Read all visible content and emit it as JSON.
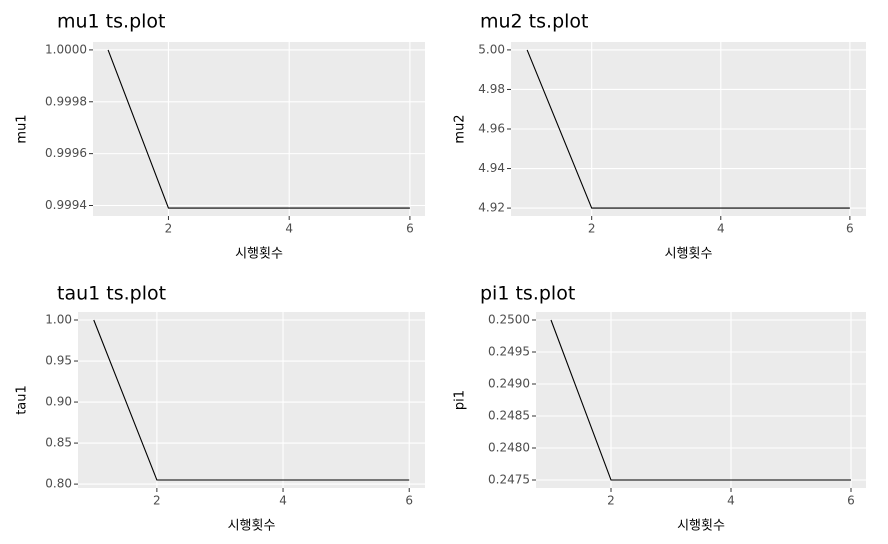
{
  "chart_data": [
    {
      "type": "line",
      "title": "mu1 ts.plot",
      "x_label": "시행횟수",
      "y_label": "mu1",
      "color": "#000000",
      "grid": true,
      "x": [
        1,
        2,
        3,
        4,
        5,
        6
      ],
      "values": [
        1.0,
        0.99939,
        0.99939,
        0.99939,
        0.99939,
        0.99939
      ],
      "xlim": [
        0.75,
        6.25
      ],
      "xticks": [
        2,
        4,
        6
      ],
      "ylim": [
        0.9993595,
        1.0000305
      ],
      "yticks": [
        0.9994,
        0.9996,
        0.9998,
        {
          "value": 1.0,
          "label": "1.0000"
        }
      ]
    },
    {
      "type": "line",
      "title": "mu2 ts.plot",
      "x_label": "시행횟수",
      "y_label": "mu2",
      "color": "#000000",
      "grid": true,
      "x": [
        1,
        2,
        3,
        4,
        5,
        6
      ],
      "values": [
        5.0,
        4.92,
        4.92,
        4.92,
        4.92,
        4.92
      ],
      "xlim": [
        0.75,
        6.25
      ],
      "xticks": [
        2,
        4,
        6
      ],
      "ylim": [
        4.916,
        5.004
      ],
      "yticks": [
        4.92,
        4.94,
        4.96,
        4.98,
        {
          "value": 5.0,
          "label": "5.00"
        }
      ]
    },
    {
      "type": "line",
      "title": "tau1 ts.plot",
      "x_label": "시행횟수",
      "y_label": "tau1",
      "color": "#000000",
      "grid": true,
      "x": [
        1,
        2,
        3,
        4,
        5,
        6
      ],
      "values": [
        1.0,
        0.805,
        0.805,
        0.805,
        0.805,
        0.805
      ],
      "xlim": [
        0.75,
        6.25
      ],
      "xticks": [
        2,
        4,
        6
      ],
      "ylim": [
        0.79525,
        1.00975
      ],
      "yticks": [
        {
          "value": 0.8,
          "label": "0.80"
        },
        0.85,
        {
          "value": 0.9,
          "label": "0.90"
        },
        0.95,
        {
          "value": 1.0,
          "label": "1.00"
        }
      ]
    },
    {
      "type": "line",
      "title": "pi1 ts.plot",
      "x_label": "시행횟수",
      "y_label": "pi1",
      "color": "#000000",
      "grid": true,
      "x": [
        1,
        2,
        3,
        4,
        5,
        6
      ],
      "values": [
        0.25,
        0.2475,
        0.2475,
        0.2475,
        0.2475,
        0.2475
      ],
      "xlim": [
        0.75,
        6.25
      ],
      "xticks": [
        2,
        4,
        6
      ],
      "ylim": [
        0.247375,
        0.250125
      ],
      "yticks": [
        0.2475,
        {
          "value": 0.248,
          "label": "0.2480"
        },
        0.2485,
        {
          "value": 0.249,
          "label": "0.2490"
        },
        0.2495,
        {
          "value": 0.25,
          "label": "0.2500"
        }
      ]
    }
  ]
}
